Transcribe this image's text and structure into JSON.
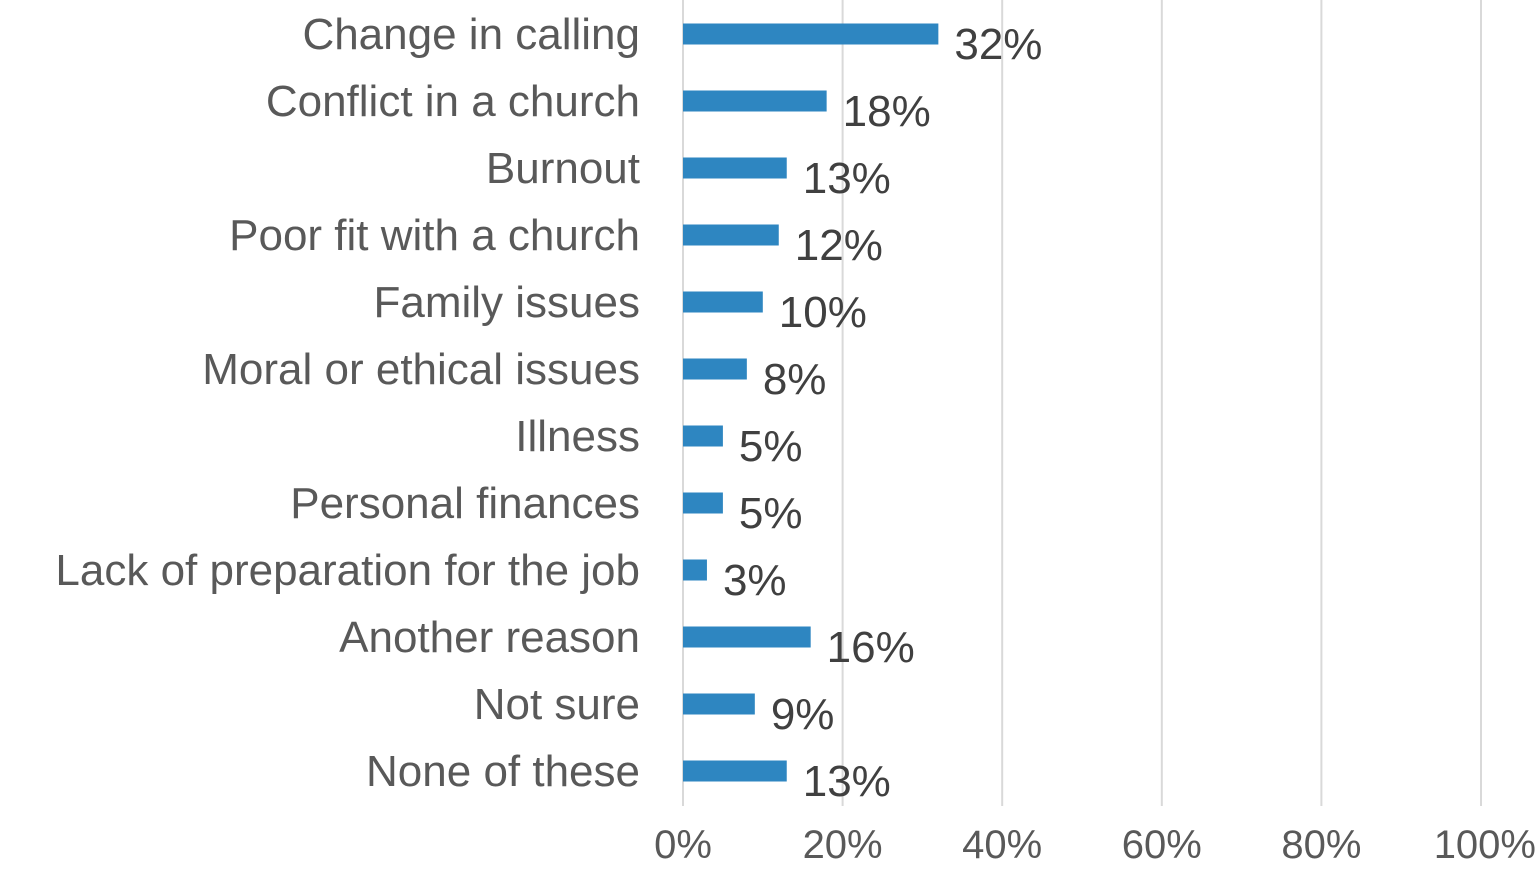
{
  "chart_data": {
    "type": "bar",
    "orientation": "horizontal",
    "title": "",
    "xlabel": "",
    "ylabel": "",
    "categories": [
      "Change in calling",
      "Conflict in a church",
      "Burnout",
      "Poor fit with a church",
      "Family issues",
      "Moral or ethical issues",
      "Illness",
      "Personal finances",
      "Lack of preparation for the job",
      "Another reason",
      "Not sure",
      "None of these"
    ],
    "values": [
      32,
      18,
      13,
      12,
      10,
      8,
      5,
      5,
      3,
      16,
      9,
      13
    ],
    "value_labels": [
      "32%",
      "18%",
      "13%",
      "12%",
      "10%",
      "8%",
      "5%",
      "5%",
      "3%",
      "16%",
      "9%",
      "13%"
    ],
    "xlim": [
      0,
      100
    ],
    "x_ticks": [
      0,
      20,
      40,
      60,
      80,
      100
    ],
    "x_tick_labels": [
      "0%",
      "20%",
      "40%",
      "60%",
      "80%",
      "100%"
    ],
    "grid": true,
    "legend": "none",
    "bar_color": "#2e86c1"
  }
}
